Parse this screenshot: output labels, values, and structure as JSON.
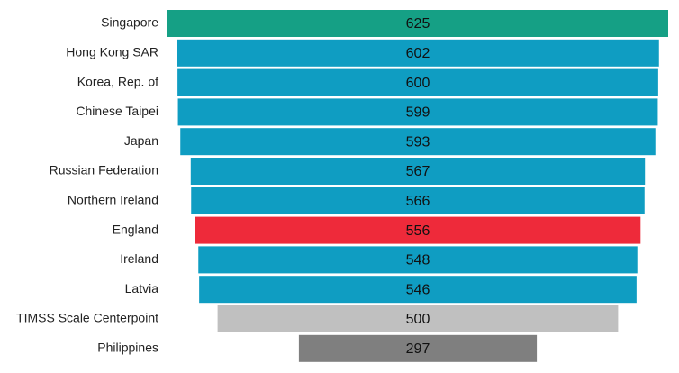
{
  "chart_data": {
    "type": "funnel",
    "categories": [
      "Singapore",
      "Hong Kong SAR",
      "Korea, Rep. of",
      "Chinese Taipei",
      "Japan",
      "Russian Federation",
      "Northern Ireland",
      "England",
      "Ireland",
      "Latvia",
      "TIMSS Scale Centerpoint",
      "Philippines"
    ],
    "values": [
      625,
      602,
      600,
      599,
      593,
      567,
      566,
      556,
      548,
      546,
      500,
      297
    ],
    "colors": [
      "#15a085",
      "#0f9dc2",
      "#0f9dc2",
      "#0f9dc2",
      "#0f9dc2",
      "#0f9dc2",
      "#0f9dc2",
      "#ee2a3a",
      "#0f9dc2",
      "#0f9dc2",
      "#c0c0c0",
      "#7f7f7f"
    ]
  }
}
